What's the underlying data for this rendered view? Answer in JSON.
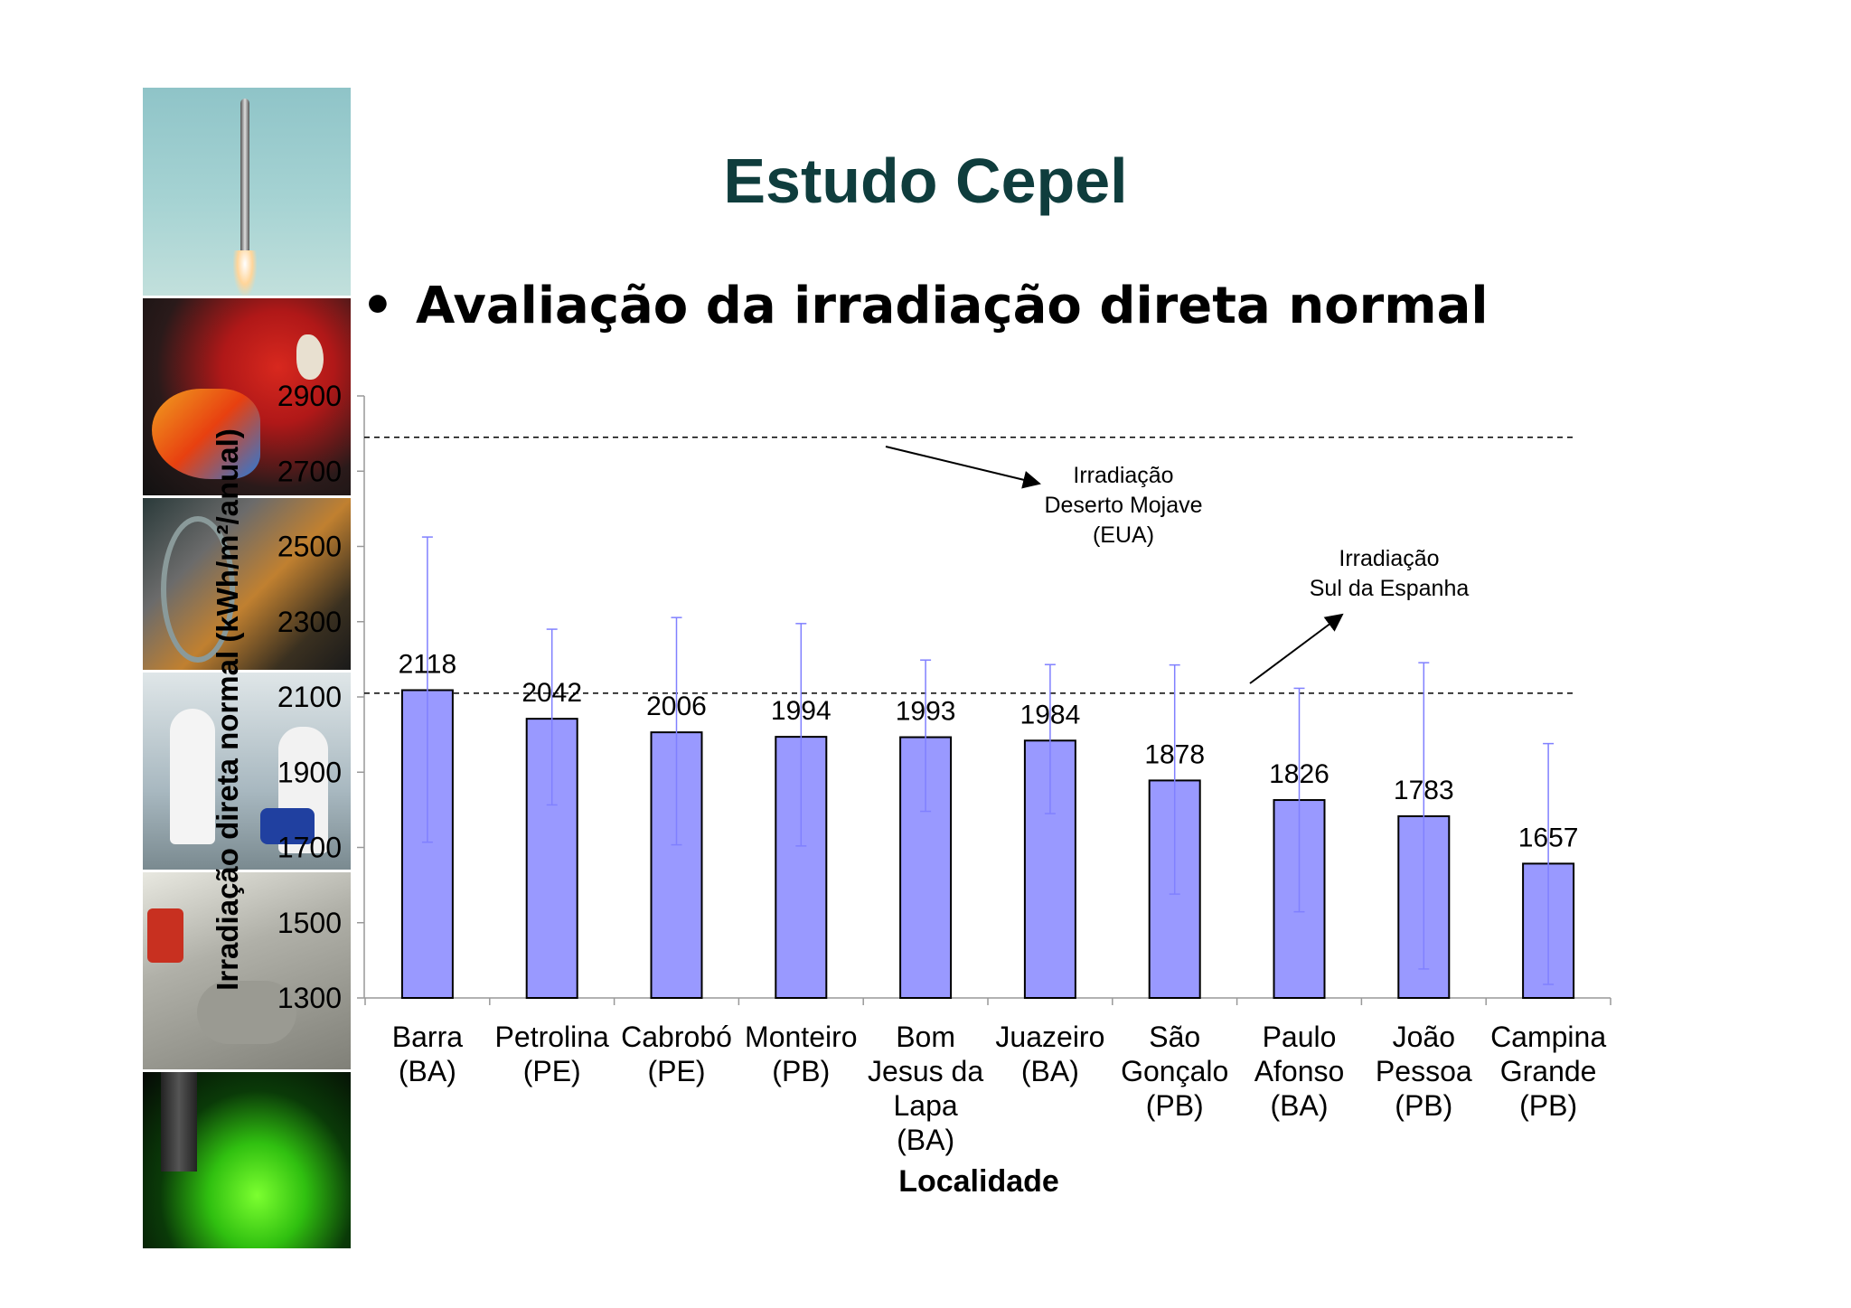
{
  "slide": {
    "title": "Estudo Cepel",
    "bullet_marker": "•",
    "bullet": "Avaliação da irradiação direta normal"
  },
  "photo_strip": [
    {
      "icon": "rocket-launch-photo"
    },
    {
      "icon": "parrot-photo"
    },
    {
      "icon": "laboratory-equipment-photo"
    },
    {
      "icon": "cleanroom-workers-photo"
    },
    {
      "icon": "lab-handling-photo"
    },
    {
      "icon": "microscope-green-photo"
    }
  ],
  "colors": {
    "bar_fill": "#9999ff",
    "bar_stroke": "#000000",
    "error_bar": "#8080ff",
    "title": "#0f3d3d"
  },
  "chart_data": {
    "type": "bar",
    "xlabel": "Localidade",
    "ylabel": "Irradiação direta normal (kWh/m²/anual)",
    "ylim": [
      1300,
      2900
    ],
    "yticks": [
      1300,
      1500,
      1700,
      1900,
      2100,
      2300,
      2500,
      2700,
      2900
    ],
    "categories": [
      [
        "Barra",
        "(BA)"
      ],
      [
        "Petrolina",
        "(PE)"
      ],
      [
        "Cabrobó",
        "(PE)"
      ],
      [
        "Monteiro",
        "(PB)"
      ],
      [
        "Bom",
        "Jesus da",
        "Lapa",
        "(BA)"
      ],
      [
        "Juazeiro",
        "(BA)"
      ],
      [
        "São",
        "Gonçalo",
        "(PB)"
      ],
      [
        "Paulo",
        "Afonso",
        "(BA)"
      ],
      [
        "João",
        "Pessoa",
        "(PB)"
      ],
      [
        "Campina",
        "Grande",
        "(PB)"
      ]
    ],
    "values": [
      2118,
      2042,
      2006,
      1994,
      1993,
      1984,
      1878,
      1826,
      1783,
      1657
    ],
    "error_low": [
      1714,
      1813,
      1707,
      1704,
      1796,
      1790,
      1576,
      1529,
      1377,
      1336
    ],
    "error_high": [
      2525,
      2280,
      2311,
      2295,
      2198,
      2186,
      2185,
      2123,
      2191,
      1976
    ],
    "reference_lines": [
      {
        "value": 2790,
        "label_lines": [
          "Irradiação",
          "Deserto Mojave",
          "(EUA)"
        ]
      },
      {
        "value": 2110,
        "label_lines": [
          "Irradiação",
          "Sul da Espanha"
        ]
      }
    ]
  }
}
